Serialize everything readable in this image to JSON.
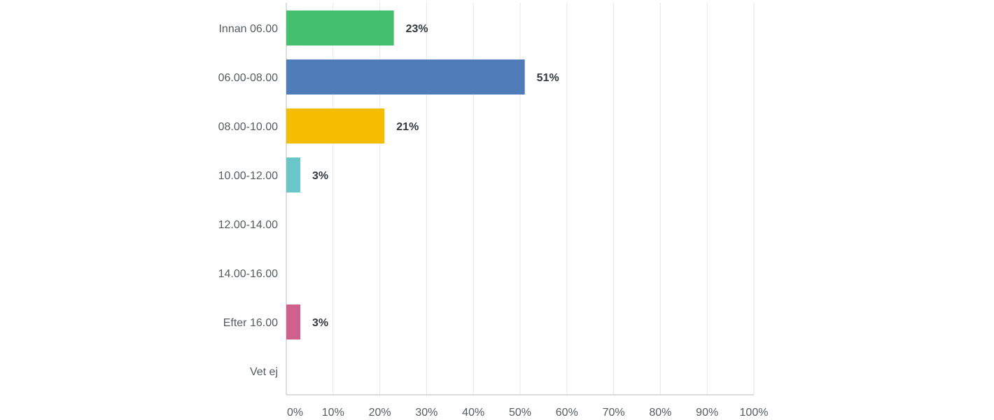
{
  "chart_data": {
    "type": "bar",
    "orientation": "horizontal",
    "categories": [
      "Innan 06.00",
      "06.00-08.00",
      "08.00-10.00",
      "10.00-12.00",
      "12.00-14.00",
      "14.00-16.00",
      "Efter 16.00",
      "Vet ej"
    ],
    "values": [
      23,
      51,
      21,
      3,
      0,
      0,
      3,
      0
    ],
    "value_labels": [
      "23%",
      "51%",
      "21%",
      "3%",
      "",
      "",
      "3%",
      ""
    ],
    "colors": [
      "#44bf6e",
      "#4f7bb8",
      "#f5bd00",
      "#6ac6c9",
      "#f09a5f",
      "#a788c4",
      "#d0608e",
      "#c9c9c9"
    ],
    "x_ticks": [
      0,
      10,
      20,
      30,
      40,
      50,
      60,
      70,
      80,
      90,
      100
    ],
    "x_tick_labels": [
      "0%",
      "10%",
      "20%",
      "30%",
      "40%",
      "50%",
      "60%",
      "70%",
      "80%",
      "90%",
      "100%"
    ],
    "xlim": [
      0,
      100
    ],
    "grid": true,
    "title": "",
    "xlabel": "",
    "ylabel": ""
  }
}
